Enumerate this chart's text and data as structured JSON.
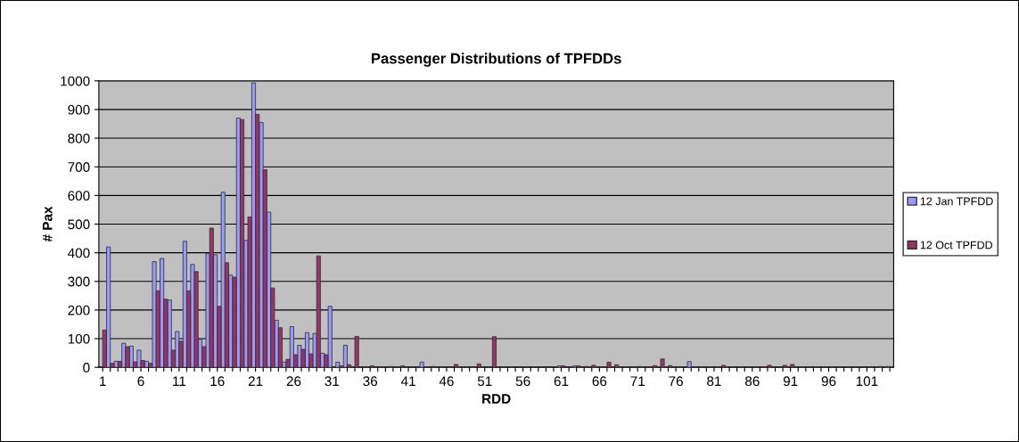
{
  "chart_data": {
    "type": "bar",
    "title": "Passenger Distributions of TPFDDs",
    "xlabel": "RDD",
    "ylabel": "# Pax",
    "categories": [
      "1",
      null,
      null,
      null,
      null,
      "6",
      null,
      null,
      null,
      null,
      "11",
      null,
      null,
      null,
      null,
      "16",
      null,
      null,
      null,
      null,
      "21",
      null,
      null,
      null,
      null,
      "26",
      null,
      null,
      null,
      null,
      "31",
      null,
      null,
      null,
      null,
      "36",
      null,
      null,
      null,
      null,
      "41",
      null,
      null,
      null,
      null,
      "46",
      null,
      null,
      null,
      null,
      "51",
      null,
      null,
      null,
      null,
      "56",
      null,
      null,
      null,
      null,
      "61",
      null,
      null,
      null,
      null,
      "66",
      null,
      null,
      null,
      null,
      "71",
      null,
      null,
      null,
      null,
      "76",
      null,
      null,
      null,
      null,
      "81",
      null,
      null,
      null,
      null,
      "86",
      null,
      null,
      null,
      null,
      "91",
      null,
      null,
      null,
      null,
      "96",
      null,
      null,
      null,
      null,
      "101",
      null,
      null,
      null
    ],
    "series": [
      {
        "name": "12 Jan TPFDD",
        "color": "#9999ff",
        "values": [
          0,
          420,
          21,
          84,
          74,
          60,
          21,
          369,
          380,
          235,
          125,
          440,
          359,
          98,
          397,
          393,
          611,
          322,
          870,
          443,
          993,
          855,
          542,
          164,
          18,
          142,
          77,
          121,
          118,
          49,
          213,
          18,
          77,
          0,
          0,
          0,
          0,
          0,
          3,
          0,
          0,
          0,
          18,
          null,
          0,
          0,
          null,
          0,
          0,
          0,
          0,
          0,
          0,
          0,
          0,
          0,
          0,
          0,
          0,
          0,
          5,
          0,
          5,
          0,
          0,
          0,
          0,
          0,
          0,
          0,
          0,
          0,
          0,
          0,
          0,
          0,
          0,
          20,
          0,
          0,
          0,
          0,
          0,
          0,
          0,
          0,
          0,
          0,
          0,
          null,
          0,
          0,
          0,
          0,
          0,
          0,
          0,
          0,
          0,
          0,
          0,
          0,
          3,
          3
        ]
      },
      {
        "name": "12 Oct TPFDD",
        "color": "#993366",
        "values": [
          130,
          14,
          21,
          72,
          19,
          24,
          14,
          267,
          238,
          60,
          91,
          267,
          334,
          72,
          486,
          213,
          365,
          315,
          865,
          525,
          883,
          690,
          277,
          138,
          28,
          44,
          63,
          47,
          389,
          44,
          0,
          5,
          9,
          108,
          0,
          5,
          0,
          0,
          0,
          5,
          0,
          0,
          0,
          3,
          0,
          0,
          10,
          0,
          0,
          12,
          0,
          107,
          0,
          0,
          0,
          2,
          0,
          0,
          0,
          0,
          5,
          0,
          5,
          3,
          7,
          0,
          18,
          9,
          0,
          0,
          3,
          0,
          6,
          29,
          6,
          0,
          0,
          0,
          0,
          0,
          0,
          7,
          0,
          0,
          0,
          0,
          0,
          7,
          0,
          7,
          10,
          0,
          0,
          0,
          0,
          0,
          0,
          0,
          0,
          0,
          0,
          0,
          0,
          0
        ]
      }
    ],
    "ylim": [
      0,
      1000
    ],
    "yticks": [
      0,
      100,
      200,
      300,
      400,
      500,
      600,
      700,
      800,
      900,
      1000
    ],
    "grid": "y",
    "legend": "right"
  }
}
